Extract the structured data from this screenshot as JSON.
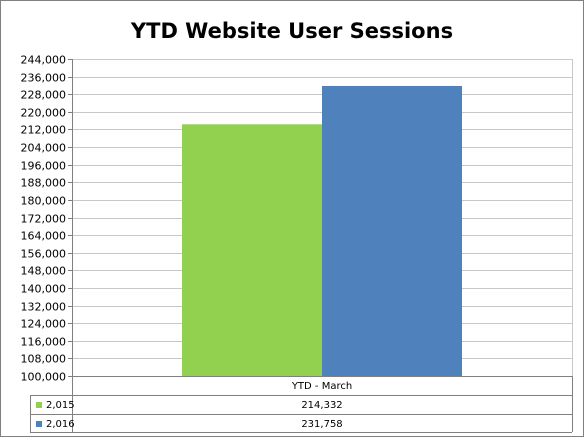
{
  "chart_data": {
    "type": "bar",
    "title": "YTD Website User Sessions",
    "categories": [
      "YTD - March"
    ],
    "series": [
      {
        "name": "2,015",
        "values": [
          214332
        ],
        "value_labels": [
          "214,332"
        ],
        "color": "#92d050"
      },
      {
        "name": "2,016",
        "values": [
          231758
        ],
        "value_labels": [
          "231,758"
        ],
        "color": "#4f81bd"
      }
    ],
    "ylim": [
      100000,
      244000
    ],
    "y_ticks": [
      "100,000",
      "108,000",
      "116,000",
      "124,000",
      "132,000",
      "140,000",
      "148,000",
      "156,000",
      "164,000",
      "172,000",
      "180,000",
      "188,000",
      "196,000",
      "204,000",
      "212,000",
      "220,000",
      "228,000",
      "236,000",
      "244,000"
    ],
    "grid": true,
    "legend": "data-table-below"
  }
}
